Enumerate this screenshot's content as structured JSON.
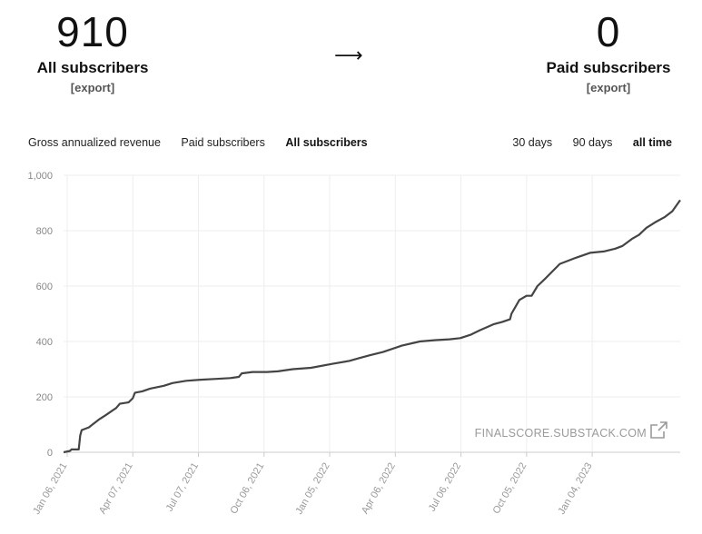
{
  "stats": {
    "left": {
      "value": "910",
      "label": "All subscribers",
      "export": "[export]"
    },
    "arrow": "⟶",
    "right": {
      "value": "0",
      "label": "Paid subscribers",
      "export": "[export]"
    }
  },
  "tabs": [
    {
      "label": "Gross annualized revenue",
      "active": false
    },
    {
      "label": "Paid subscribers",
      "active": false
    },
    {
      "label": "All subscribers",
      "active": true
    }
  ],
  "ranges": [
    {
      "label": "30 days",
      "active": false
    },
    {
      "label": "90 days",
      "active": false
    },
    {
      "label": "all time",
      "active": true
    }
  ],
  "watermark": "FINALSCORE.SUBSTACK.COM",
  "chart_data": {
    "type": "line",
    "title": "",
    "xlabel": "",
    "ylabel": "",
    "ylim": [
      0,
      1000
    ],
    "y_ticks": [
      "0",
      "200",
      "400",
      "600",
      "800",
      "1,000"
    ],
    "x_ticks": [
      "Jan 06, 2021",
      "Apr 07, 2021",
      "Jul 07, 2021",
      "Oct 06, 2021",
      "Jan 05, 2022",
      "Apr 06, 2022",
      "Jul 06, 2022",
      "Oct 05, 2022",
      "Jan 04, 2023"
    ],
    "grid": true,
    "line_color": "#444444",
    "series": [
      {
        "x": [
          "2021-01-01",
          "2021-01-10",
          "2021-01-12",
          "2021-01-22",
          "2021-01-24",
          "2021-01-26",
          "2021-02-05",
          "2021-02-10",
          "2021-02-20",
          "2021-03-01",
          "2021-03-15",
          "2021-03-20",
          "2021-04-01",
          "2021-04-07",
          "2021-04-10",
          "2021-04-20",
          "2021-05-01",
          "2021-05-20",
          "2021-06-01",
          "2021-06-20",
          "2021-07-10",
          "2021-08-01",
          "2021-08-20",
          "2021-09-01",
          "2021-09-05",
          "2021-09-20",
          "2021-10-10",
          "2021-10-25",
          "2021-11-15",
          "2021-12-10",
          "2022-01-10",
          "2022-02-01",
          "2022-02-15",
          "2022-03-01",
          "2022-03-20",
          "2022-04-15",
          "2022-05-10",
          "2022-06-01",
          "2022-06-20",
          "2022-07-05",
          "2022-07-20",
          "2022-08-01",
          "2022-08-20",
          "2022-09-01",
          "2022-09-12",
          "2022-09-14",
          "2022-09-25",
          "2022-10-05",
          "2022-10-12",
          "2022-10-20",
          "2022-11-01",
          "2022-11-20",
          "2022-12-10",
          "2023-01-01",
          "2023-01-20",
          "2023-02-05",
          "2023-02-15",
          "2023-02-28",
          "2023-03-10",
          "2023-03-20",
          "2023-04-01",
          "2023-04-15",
          "2023-04-25",
          "2023-05-06"
        ],
        "y": [
          0,
          5,
          10,
          10,
          60,
          80,
          90,
          100,
          120,
          135,
          160,
          175,
          180,
          195,
          215,
          220,
          230,
          240,
          250,
          258,
          262,
          265,
          268,
          272,
          285,
          290,
          290,
          292,
          300,
          305,
          320,
          330,
          340,
          350,
          362,
          385,
          400,
          405,
          408,
          412,
          425,
          440,
          462,
          470,
          480,
          500,
          550,
          565,
          565,
          600,
          630,
          680,
          700,
          720,
          725,
          735,
          745,
          770,
          785,
          810,
          830,
          850,
          870,
          910
        ]
      }
    ]
  }
}
